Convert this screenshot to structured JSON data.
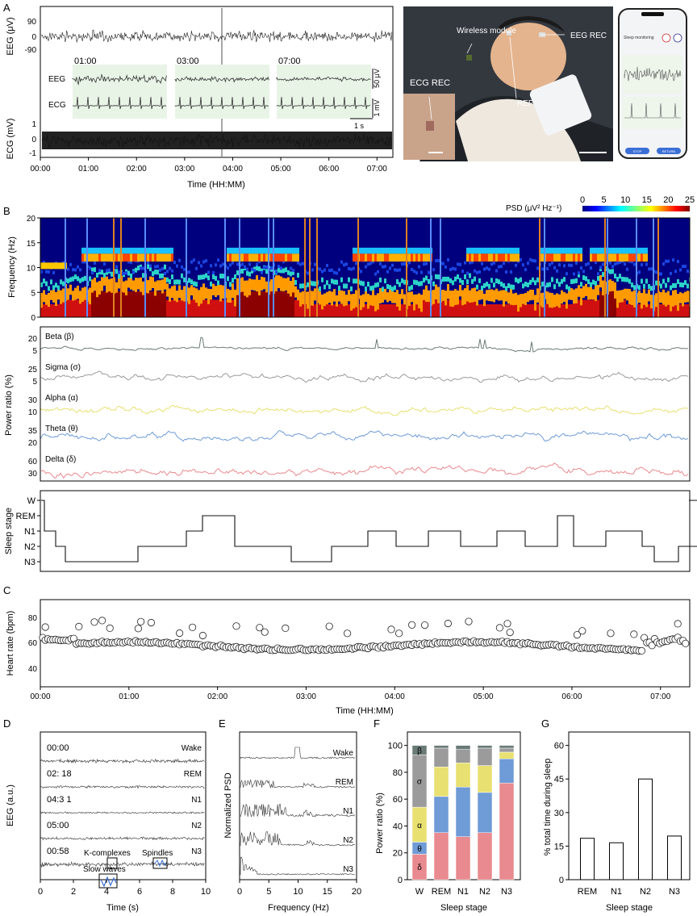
{
  "panel_letters": [
    "A",
    "B",
    "C",
    "D",
    "E",
    "F",
    "G"
  ],
  "colors": {
    "delta": "#e88a8f",
    "theta": "#6f9bd6",
    "alpha": "#e8e070",
    "sigma": "#9b9b9b",
    "beta": "#6a7b77",
    "inset_bg": "#e8f5e6",
    "trace": "#222222",
    "photo_bg": "#2c3036",
    "phone_bg": "#f3f4f6",
    "highlight": "#3b6fd6"
  },
  "panelA": {
    "eeg_ylabel": "EEG (μV)",
    "eeg_ticks": [
      "90",
      "0",
      "-90"
    ],
    "ecg_ylabel": "ECG (mV)",
    "ecg_ticks": [
      "1",
      "0",
      "-1"
    ],
    "xlabel": "Time (HH:MM)",
    "xticks": [
      "00:00",
      "01:00",
      "02:00",
      "03:00",
      "04:00",
      "05:00",
      "06:00",
      "07:00"
    ],
    "insets": [
      {
        "time": "01:00"
      },
      {
        "time": "03:00"
      },
      {
        "time": "07:00"
      }
    ],
    "inset_row_labels": [
      "EEG",
      "ECG"
    ],
    "scale_labels": [
      "50 μV",
      "1 mV",
      "1 s"
    ],
    "photo_labels": {
      "wireless": "Wireless module",
      "eeg": "EEG REC",
      "ref": "REF",
      "ecg": "ECG REC"
    },
    "phone": {
      "title": "Sleep monitoring",
      "btn_stop": "STOP",
      "btn_return": "RETURN"
    }
  },
  "panelB": {
    "spectrogram": {
      "ylabel": "Frequency (Hz)",
      "yticks": [
        "20",
        "15",
        "10",
        "5",
        "0"
      ],
      "colorbar_label": "PSD (μV² Hz⁻¹)",
      "colorbar_ticks": [
        "0",
        "5",
        "10",
        "15",
        "20",
        "25"
      ]
    },
    "power": {
      "ylabel": "Power ratio (%)",
      "bands": [
        {
          "name": "Beta (β)",
          "ticks": [
            "20",
            "5"
          ]
        },
        {
          "name": "Sigma (σ)",
          "ticks": [
            "25",
            "5"
          ]
        },
        {
          "name": "Alpha (α)",
          "ticks": [
            "30",
            "10"
          ]
        },
        {
          "name": "Theta (θ)",
          "ticks": [
            "35",
            "20"
          ]
        },
        {
          "name": "Delta (δ)",
          "ticks": [
            "60",
            "30"
          ]
        }
      ]
    },
    "hypnogram": {
      "ylabel": "Sleep stage",
      "stages": [
        "W",
        "REM",
        "N1",
        "N2",
        "N3"
      ]
    }
  },
  "panelC": {
    "ylabel": "Heart rate (bpm)",
    "yticks": [
      "80",
      "60",
      "40"
    ],
    "xlabel": "Time (HH:MM)",
    "xticks": [
      "00:00",
      "01:00",
      "02:00",
      "03:00",
      "04:00",
      "05:00",
      "06:00",
      "07:00"
    ]
  },
  "panelD": {
    "ylabel": "EEG (a.u.)",
    "xlabel": "Time (s)",
    "xticks": [
      "0",
      "2",
      "4",
      "6",
      "8",
      "10"
    ],
    "rows": [
      {
        "time": "00:00",
        "stage": "Wake"
      },
      {
        "time": "02: 18",
        "stage": "REM"
      },
      {
        "time": "04:3 1",
        "stage": "N1"
      },
      {
        "time": "05:00",
        "stage": "N2"
      },
      {
        "time": "00:58",
        "stage": "N3"
      }
    ],
    "annotations": [
      "K-complexes",
      "Spindles",
      "Slow waves"
    ]
  },
  "panelE": {
    "ylabel": "Normalized PSD",
    "xlabel": "Frequency (Hz)",
    "xticks": [
      "0",
      "5",
      "10",
      "15",
      "20"
    ],
    "stages": [
      "Wake",
      "REM",
      "N1",
      "N2",
      "N3"
    ]
  },
  "chart_data": [
    {
      "type": "bar",
      "title": "",
      "xlabel": "Sleep stage",
      "ylabel": "Power ratio (%)",
      "ylim": [
        0,
        100
      ],
      "yticks": [
        "0",
        "20",
        "40",
        "60",
        "80",
        "100"
      ],
      "stacked": true,
      "categories": [
        "W",
        "REM",
        "N1",
        "N2",
        "N3"
      ],
      "series": [
        {
          "name": "δ",
          "values": [
            19,
            35,
            32,
            35,
            72
          ]
        },
        {
          "name": "θ",
          "values": [
            9,
            27,
            37,
            30,
            18
          ]
        },
        {
          "name": "α",
          "values": [
            26,
            22,
            18,
            20,
            5
          ]
        },
        {
          "name": "σ",
          "values": [
            39,
            14,
            10,
            13,
            3
          ]
        },
        {
          "name": "β",
          "values": [
            7,
            2,
            3,
            2,
            2
          ]
        }
      ]
    },
    {
      "type": "bar",
      "title": "",
      "xlabel": "Sleep stage",
      "ylabel": "% total time during sleep",
      "ylim": [
        0,
        60
      ],
      "yticks": [
        "0",
        "15",
        "30",
        "45",
        "60"
      ],
      "categories": [
        "REM",
        "N1",
        "N2",
        "N3"
      ],
      "values": [
        18.5,
        16.5,
        45,
        19.5
      ]
    }
  ]
}
